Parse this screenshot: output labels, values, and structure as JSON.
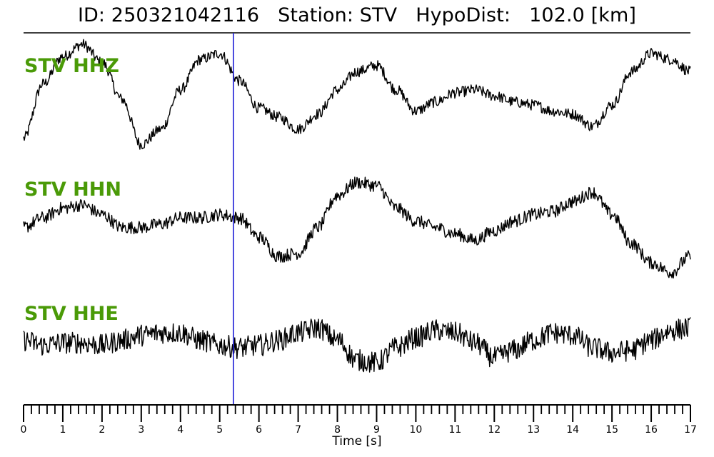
{
  "title": "ID: 250321042116   Station: STV   HypoDist:   102.0 [km]",
  "colors": {
    "trace": "#000000",
    "label": "#4a9a07",
    "pick_line": "#1f1fd6",
    "axis": "#000000"
  },
  "chart_data": {
    "type": "line",
    "title": "ID: 250321042116   Station: STV   HypoDist:   102.0 [km]",
    "xlabel": "Time [s]",
    "ylabel": "",
    "xlim": [
      0,
      17
    ],
    "x_major_ticks": [
      0,
      1,
      2,
      3,
      4,
      5,
      6,
      7,
      8,
      9,
      10,
      11,
      12,
      13,
      14,
      15,
      16,
      17
    ],
    "x_minor_step": 0.2,
    "grid": false,
    "legend": "none",
    "vertical_marker": {
      "x": 5.35
    },
    "series": [
      {
        "name": "STV HHZ",
        "x": [
          0,
          0.5,
          1.0,
          1.5,
          2.0,
          2.5,
          3.0,
          3.5,
          4.0,
          4.5,
          5.0,
          5.5,
          6.0,
          6.5,
          7.0,
          7.5,
          8.0,
          8.5,
          9.0,
          9.5,
          10.0,
          10.5,
          11.0,
          11.5,
          12.0,
          12.5,
          13.0,
          13.5,
          14.0,
          14.5,
          15.0,
          15.5,
          16.0,
          16.5,
          17.0
        ],
        "values": [
          -0.75,
          0.15,
          0.6,
          0.8,
          0.5,
          -0.1,
          -0.85,
          -0.6,
          0.05,
          0.55,
          0.65,
          0.2,
          -0.25,
          -0.4,
          -0.6,
          -0.35,
          0.05,
          0.35,
          0.45,
          0.05,
          -0.3,
          -0.15,
          0.0,
          0.05,
          -0.05,
          -0.15,
          -0.2,
          -0.3,
          -0.35,
          -0.55,
          -0.2,
          0.35,
          0.65,
          0.55,
          0.35
        ],
        "noise": 0.09
      },
      {
        "name": "STV HHN",
        "x": [
          0,
          0.5,
          1.0,
          1.5,
          2.0,
          2.5,
          3.0,
          3.5,
          4.0,
          4.5,
          5.0,
          5.5,
          6.0,
          6.5,
          7.0,
          7.5,
          8.0,
          8.5,
          9.0,
          9.5,
          10.0,
          10.5,
          11.0,
          11.5,
          12.0,
          12.5,
          13.0,
          13.5,
          14.0,
          14.5,
          15.0,
          15.5,
          16.0,
          16.5,
          17.0
        ],
        "values": [
          -0.15,
          0.0,
          0.15,
          0.2,
          0.05,
          -0.15,
          -0.15,
          -0.1,
          0.0,
          0.0,
          0.05,
          0.0,
          -0.3,
          -0.6,
          -0.55,
          -0.15,
          0.35,
          0.55,
          0.5,
          0.15,
          -0.05,
          -0.15,
          -0.25,
          -0.35,
          -0.2,
          -0.05,
          0.05,
          0.1,
          0.25,
          0.4,
          0.05,
          -0.4,
          -0.7,
          -0.85,
          -0.6
        ],
        "noise": 0.1
      },
      {
        "name": "STV HHE",
        "x": [
          0,
          0.5,
          1.0,
          1.5,
          2.0,
          2.5,
          3.0,
          3.5,
          4.0,
          4.5,
          5.0,
          5.5,
          6.0,
          6.5,
          7.0,
          7.5,
          8.0,
          8.5,
          9.0,
          9.5,
          10.0,
          10.5,
          11.0,
          11.5,
          12.0,
          12.5,
          13.0,
          13.5,
          14.0,
          14.5,
          15.0,
          15.5,
          16.0,
          16.5,
          17.0
        ],
        "values": [
          0.05,
          -0.05,
          0.0,
          0.0,
          -0.05,
          0.05,
          0.15,
          0.2,
          0.2,
          0.05,
          -0.05,
          -0.1,
          -0.05,
          0.05,
          0.2,
          0.3,
          0.05,
          -0.35,
          -0.4,
          -0.1,
          0.1,
          0.25,
          0.2,
          0.0,
          -0.3,
          -0.15,
          0.05,
          0.2,
          0.15,
          -0.1,
          -0.2,
          -0.15,
          0.05,
          0.25,
          0.3
        ],
        "noise": 0.22
      }
    ]
  }
}
